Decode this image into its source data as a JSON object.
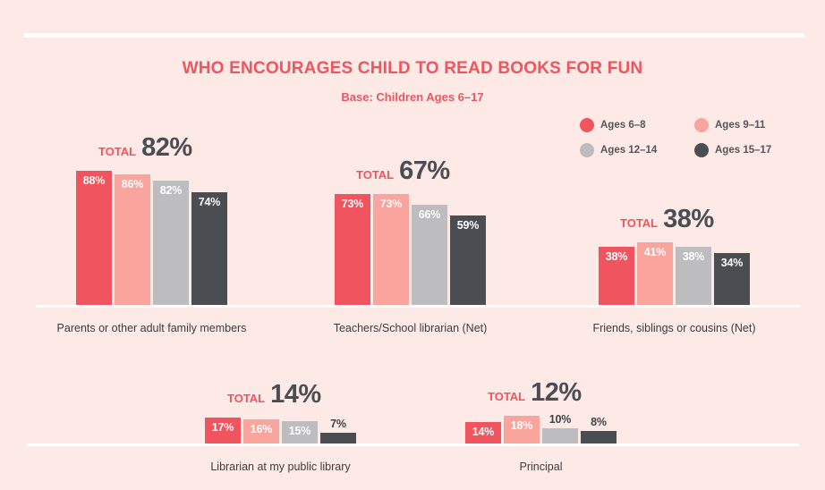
{
  "chart_data": {
    "type": "bar",
    "title": "WHO ENCOURAGES CHILD TO READ BOOKS FOR FUN",
    "subtitle": "Base: Children Ages 6–17",
    "total_word": "TOTAL",
    "series": [
      {
        "name": "Ages 6–8",
        "color": "#f0555f"
      },
      {
        "name": "Ages 9–11",
        "color": "#f9a49c"
      },
      {
        "name": "Ages 12–14",
        "color": "#bdbdbf"
      },
      {
        "name": "Ages 15–17",
        "color": "#4a4d52"
      }
    ],
    "groups": [
      {
        "category": "Parents or other adult family members",
        "total": "82%",
        "values": [
          88,
          86,
          82,
          74
        ],
        "labels": [
          "88%",
          "86%",
          "82%",
          "74%"
        ]
      },
      {
        "category": "Teachers/School librarian (Net)",
        "total": "67%",
        "values": [
          73,
          73,
          66,
          59
        ],
        "labels": [
          "73%",
          "73%",
          "66%",
          "59%"
        ]
      },
      {
        "category": "Friends, siblings or cousins (Net)",
        "total": "38%",
        "values": [
          38,
          41,
          38,
          34
        ],
        "labels": [
          "38%",
          "41%",
          "38%",
          "34%"
        ]
      },
      {
        "category": "Librarian at my public library",
        "total": "14%",
        "values": [
          17,
          16,
          15,
          7
        ],
        "labels": [
          "17%",
          "16%",
          "15%",
          "7%"
        ]
      },
      {
        "category": "Principal",
        "total": "12%",
        "values": [
          14,
          18,
          10,
          8
        ],
        "labels": [
          "14%",
          "18%",
          "10%",
          "8%"
        ]
      }
    ],
    "legend_position": "top-right",
    "grid": false
  }
}
